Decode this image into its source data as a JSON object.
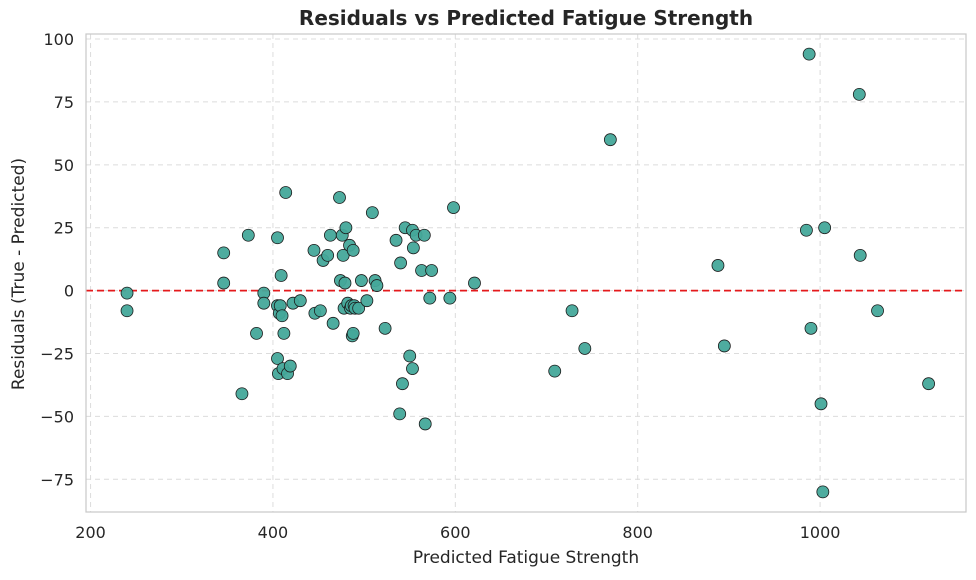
{
  "colors": {
    "point_fill": "#45A89A",
    "point_stroke": "#1b1b1b",
    "zero_line": "#e41a1c",
    "grid": "#dcdcdc",
    "axes": "#c8c8c8"
  },
  "chart_data": {
    "type": "scatter",
    "title": "Residuals vs Predicted Fatigue Strength",
    "xlabel": "Predicted Fatigue Strength",
    "ylabel": "Residuals (True - Predicted)",
    "xlim": [
      195,
      1160
    ],
    "ylim": [
      -88,
      102
    ],
    "xticks": [
      200,
      400,
      600,
      800,
      1000
    ],
    "yticks": [
      -75,
      -50,
      -25,
      0,
      25,
      50,
      75,
      100
    ],
    "xtick_labels": [
      "200",
      "400",
      "600",
      "800",
      "1000"
    ],
    "ytick_labels": [
      "−75",
      "−50",
      "−25",
      "0",
      "25",
      "50",
      "75",
      "100"
    ],
    "grid": true,
    "reference_line": {
      "y": 0,
      "style": "dashed"
    },
    "points": [
      [
        240,
        -1
      ],
      [
        240,
        -8
      ],
      [
        346,
        15
      ],
      [
        346,
        3
      ],
      [
        366,
        -41
      ],
      [
        373,
        22
      ],
      [
        382,
        -17
      ],
      [
        390,
        -1
      ],
      [
        390,
        -5
      ],
      [
        405,
        21
      ],
      [
        405,
        -6
      ],
      [
        405,
        -27
      ],
      [
        406,
        -33
      ],
      [
        407,
        -9
      ],
      [
        408,
        -6
      ],
      [
        409,
        6
      ],
      [
        410,
        -10
      ],
      [
        411,
        -31
      ],
      [
        412,
        -17
      ],
      [
        414,
        39
      ],
      [
        416,
        -33
      ],
      [
        419,
        -30
      ],
      [
        422,
        -5
      ],
      [
        430,
        -4
      ],
      [
        445,
        16
      ],
      [
        446,
        -9
      ],
      [
        452,
        -8
      ],
      [
        455,
        12
      ],
      [
        460,
        14
      ],
      [
        463,
        22
      ],
      [
        466,
        -13
      ],
      [
        473,
        37
      ],
      [
        474,
        4
      ],
      [
        476,
        22
      ],
      [
        477,
        14
      ],
      [
        478,
        -7
      ],
      [
        479,
        3
      ],
      [
        480,
        25
      ],
      [
        482,
        -5
      ],
      [
        484,
        18
      ],
      [
        485,
        -7
      ],
      [
        486,
        -6
      ],
      [
        487,
        -18
      ],
      [
        488,
        -17
      ],
      [
        488,
        16
      ],
      [
        489,
        -6
      ],
      [
        490,
        -7
      ],
      [
        494,
        -7
      ],
      [
        497,
        4
      ],
      [
        503,
        -4
      ],
      [
        509,
        31
      ],
      [
        512,
        4
      ],
      [
        514,
        2
      ],
      [
        523,
        -15
      ],
      [
        535,
        20
      ],
      [
        539,
        -49
      ],
      [
        540,
        11
      ],
      [
        542,
        -37
      ],
      [
        545,
        25
      ],
      [
        550,
        -26
      ],
      [
        553,
        24
      ],
      [
        553,
        -31
      ],
      [
        554,
        17
      ],
      [
        557,
        22
      ],
      [
        563,
        8
      ],
      [
        566,
        22
      ],
      [
        567,
        -53
      ],
      [
        572,
        -3
      ],
      [
        574,
        8
      ],
      [
        594,
        -3
      ],
      [
        598,
        33
      ],
      [
        621,
        3
      ],
      [
        709,
        -32
      ],
      [
        728,
        -8
      ],
      [
        742,
        -23
      ],
      [
        770,
        60
      ],
      [
        888,
        10
      ],
      [
        895,
        -22
      ],
      [
        985,
        24
      ],
      [
        988,
        94
      ],
      [
        990,
        -15
      ],
      [
        1001,
        -45
      ],
      [
        1003,
        -80
      ],
      [
        1005,
        25
      ],
      [
        1043,
        78
      ],
      [
        1044,
        14
      ],
      [
        1063,
        -8
      ],
      [
        1119,
        -37
      ]
    ]
  }
}
